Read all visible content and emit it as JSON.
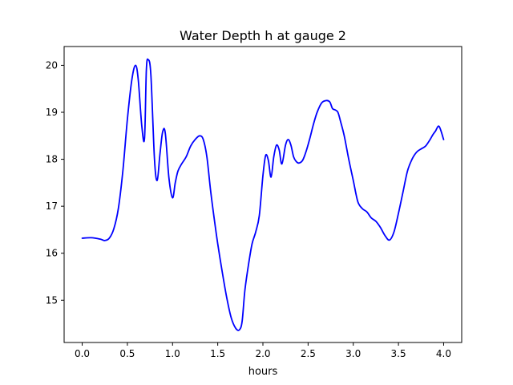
{
  "chart_data": {
    "type": "line",
    "title": "Water Depth h at gauge 2",
    "xlabel": "hours",
    "ylabel": "",
    "xlim": [
      -0.2,
      4.2
    ],
    "ylim": [
      14.1,
      20.4
    ],
    "grid": false,
    "legend": "none",
    "xticks": [
      0.0,
      0.5,
      1.0,
      1.5,
      2.0,
      2.5,
      3.0,
      3.5,
      4.0
    ],
    "xtick_labels": [
      "0.0",
      "0.5",
      "1.0",
      "1.5",
      "2.0",
      "2.5",
      "3.0",
      "3.5",
      "4.0"
    ],
    "yticks": [
      15,
      16,
      17,
      18,
      19,
      20
    ],
    "ytick_labels": [
      "15",
      "16",
      "17",
      "18",
      "19",
      "20"
    ],
    "series": [
      {
        "color": "#0000ff",
        "x": [
          0.0,
          0.1,
          0.2,
          0.25,
          0.3,
          0.35,
          0.4,
          0.45,
          0.5,
          0.55,
          0.59,
          0.62,
          0.66,
          0.69,
          0.71,
          0.73,
          0.76,
          0.8,
          0.83,
          0.86,
          0.89,
          0.92,
          0.96,
          1.0,
          1.03,
          1.06,
          1.1,
          1.15,
          1.2,
          1.25,
          1.3,
          1.34,
          1.38,
          1.42,
          1.46,
          1.5,
          1.55,
          1.6,
          1.65,
          1.7,
          1.74,
          1.77,
          1.8,
          1.84,
          1.88,
          1.92,
          1.96,
          2.0,
          2.03,
          2.06,
          2.09,
          2.12,
          2.15,
          2.18,
          2.21,
          2.25,
          2.28,
          2.31,
          2.34,
          2.37,
          2.4,
          2.44,
          2.48,
          2.52,
          2.56,
          2.6,
          2.65,
          2.7,
          2.74,
          2.77,
          2.8,
          2.83,
          2.86,
          2.9,
          2.95,
          3.0,
          3.05,
          3.1,
          3.15,
          3.2,
          3.25,
          3.3,
          3.35,
          3.4,
          3.45,
          3.5,
          3.55,
          3.6,
          3.65,
          3.7,
          3.75,
          3.8,
          3.85,
          3.88,
          3.91,
          3.95,
          4.0
        ],
        "y": [
          16.32,
          16.33,
          16.3,
          16.27,
          16.32,
          16.52,
          16.95,
          17.75,
          18.85,
          19.7,
          20.0,
          19.7,
          18.7,
          18.45,
          19.9,
          20.12,
          19.8,
          18.0,
          17.55,
          18.1,
          18.58,
          18.55,
          17.6,
          17.18,
          17.5,
          17.75,
          17.9,
          18.05,
          18.28,
          18.42,
          18.5,
          18.42,
          18.05,
          17.35,
          16.75,
          16.2,
          15.6,
          15.05,
          14.62,
          14.4,
          14.37,
          14.55,
          15.2,
          15.75,
          16.2,
          16.45,
          16.8,
          17.65,
          18.08,
          17.98,
          17.62,
          18.05,
          18.3,
          18.2,
          17.9,
          18.3,
          18.42,
          18.3,
          18.05,
          17.95,
          17.92,
          17.98,
          18.18,
          18.45,
          18.75,
          19.0,
          19.2,
          19.25,
          19.22,
          19.08,
          19.05,
          19.0,
          18.8,
          18.5,
          18.0,
          17.55,
          17.1,
          16.95,
          16.88,
          16.75,
          16.68,
          16.55,
          16.38,
          16.28,
          16.45,
          16.85,
          17.3,
          17.75,
          18.0,
          18.15,
          18.22,
          18.28,
          18.42,
          18.52,
          18.6,
          18.7,
          18.42
        ]
      }
    ]
  }
}
